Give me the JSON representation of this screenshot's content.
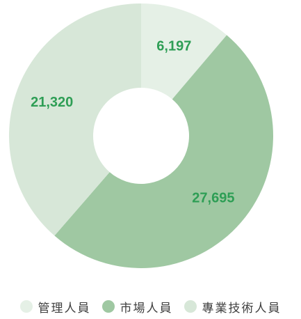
{
  "chart_data": {
    "type": "pie",
    "donut": true,
    "categories": [
      "管理人員",
      "市場人員",
      "專業技術人員"
    ],
    "values": [
      6197,
      27695,
      21320
    ],
    "value_labels": [
      "6,197",
      "27,695",
      "21,320"
    ],
    "colors": [
      "#e5f0e6",
      "#9fc8a2",
      "#d7e7d8"
    ],
    "label_color": "#2e9e55",
    "start_angle_deg": 0,
    "direction": "clockwise",
    "legend_position": "bottom"
  }
}
